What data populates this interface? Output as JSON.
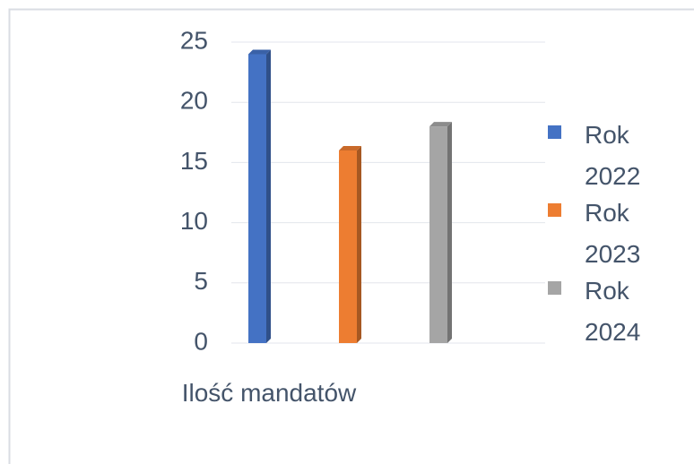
{
  "chart_data": {
    "type": "bar",
    "categories": [
      "Ilość mandatów"
    ],
    "series": [
      {
        "name": "Rok 2022",
        "color": "#4472c4",
        "values": [
          24
        ]
      },
      {
        "name": "Rok 2023",
        "color": "#ed7d31",
        "values": [
          16
        ]
      },
      {
        "name": "Rok 2024",
        "color": "#a5a5a5",
        "values": [
          18
        ]
      }
    ],
    "ylim": [
      0,
      25
    ],
    "yticks": [
      0,
      5,
      10,
      15,
      20,
      25
    ],
    "grid": true,
    "legend": "right"
  }
}
